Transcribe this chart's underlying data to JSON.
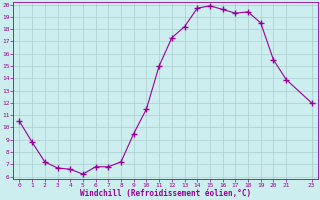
{
  "x": [
    0,
    1,
    2,
    3,
    4,
    5,
    6,
    7,
    8,
    9,
    10,
    11,
    12,
    13,
    14,
    15,
    16,
    17,
    18,
    19,
    20,
    21,
    23
  ],
  "y": [
    10.5,
    8.8,
    7.2,
    6.7,
    6.6,
    6.2,
    6.8,
    6.8,
    7.2,
    9.5,
    11.5,
    15.0,
    17.3,
    18.2,
    19.7,
    19.9,
    19.6,
    19.3,
    19.4,
    18.5,
    15.5,
    13.9,
    12.0
  ],
  "line_color": "#990099",
  "marker": "+",
  "marker_size": 4,
  "bg_color": "#cceeee",
  "grid_color": "#aacccc",
  "xlabel": "Windchill (Refroidissement éolien,°C)",
  "xlabel_color": "#990099",
  "tick_color": "#990099",
  "spine_color": "#990099",
  "ylim": [
    6,
    20
  ],
  "xlim": [
    -0.5,
    23.5
  ],
  "yticks": [
    6,
    7,
    8,
    9,
    10,
    11,
    12,
    13,
    14,
    15,
    16,
    17,
    18,
    19,
    20
  ],
  "xticks": [
    0,
    1,
    2,
    3,
    4,
    5,
    6,
    7,
    8,
    9,
    10,
    11,
    12,
    13,
    14,
    15,
    16,
    17,
    18,
    19,
    20,
    21,
    23
  ]
}
